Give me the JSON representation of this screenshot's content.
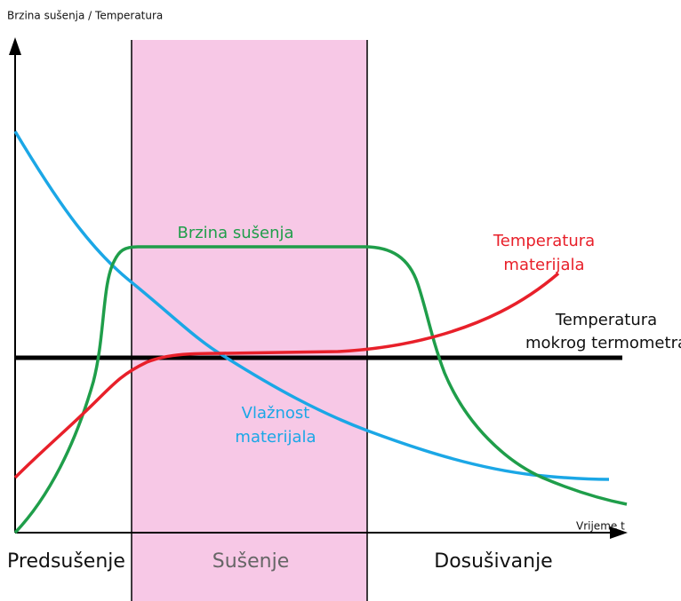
{
  "axis": {
    "y_label": "Brzina sušenja / Temperatura",
    "x_label": "Vrijeme t"
  },
  "curves": {
    "drying_rate": "Brzina sušenja",
    "material_temperature": [
      "Temperatura",
      "materijala"
    ],
    "wet_bulb_temperature": [
      "Temperatura",
      "mokrog termometra"
    ],
    "material_moisture": [
      "Vlažnost",
      "materijala"
    ]
  },
  "phases": [
    "Predsušenje",
    "Sušenje",
    "Dosušivanje"
  ]
}
